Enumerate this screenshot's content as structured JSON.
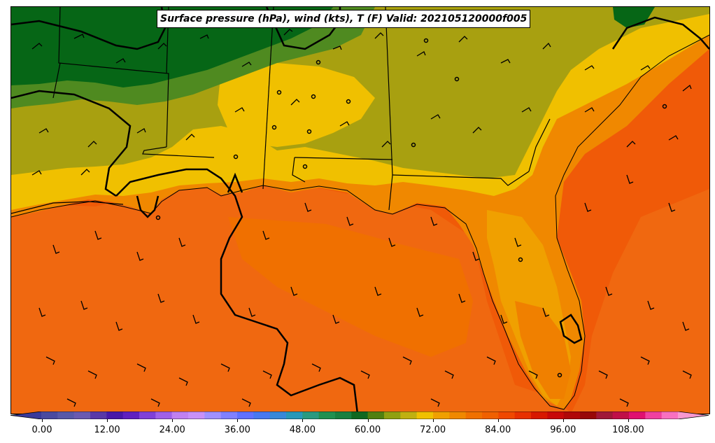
{
  "title": "Surface pressure (hPa), wind (kts), T (F) Valid: 202105120000f005",
  "colorbar": {
    "ticks": [
      "0.00",
      "12.00",
      "24.00",
      "36.00",
      "48.00",
      "60.00",
      "72.00",
      "84.00",
      "96.00",
      "108.00"
    ],
    "tick_values": [
      0,
      12,
      24,
      36,
      48,
      60,
      72,
      84,
      96,
      108
    ],
    "range": [
      -6,
      126
    ],
    "extend": "both",
    "colors": [
      "#3a3a9a",
      "#4a4aa0",
      "#5858a8",
      "#6a5ab0",
      "#5838a8",
      "#4818a8",
      "#6020c0",
      "#8040d8",
      "#a060e8",
      "#c080f0",
      "#c890f8",
      "#a090ff",
      "#8080ff",
      "#6070ff",
      "#4878f0",
      "#3888d8",
      "#2898b8",
      "#2a9a80",
      "#209050",
      "#188040",
      "#106820",
      "#508010",
      "#90a010",
      "#c0b010",
      "#f0c000",
      "#f0a000",
      "#f08800",
      "#f07000",
      "#f06000",
      "#f04800",
      "#e83000",
      "#d81800",
      "#c80808",
      "#b00808",
      "#980808",
      "#a01838",
      "#c01048",
      "#e01070",
      "#f040a0",
      "#f870c0",
      "#f898d0"
    ]
  },
  "colors": {
    "water": "#f05a08",
    "coast_zone": "#f57a00",
    "warm_land": "#f0a000",
    "yellow_land": "#f0c000",
    "olive_land": "#a8a010",
    "green_land": "#4f8a20",
    "dark_green_land": "#066616",
    "boundary": "#000000",
    "isobar": "#000000"
  }
}
